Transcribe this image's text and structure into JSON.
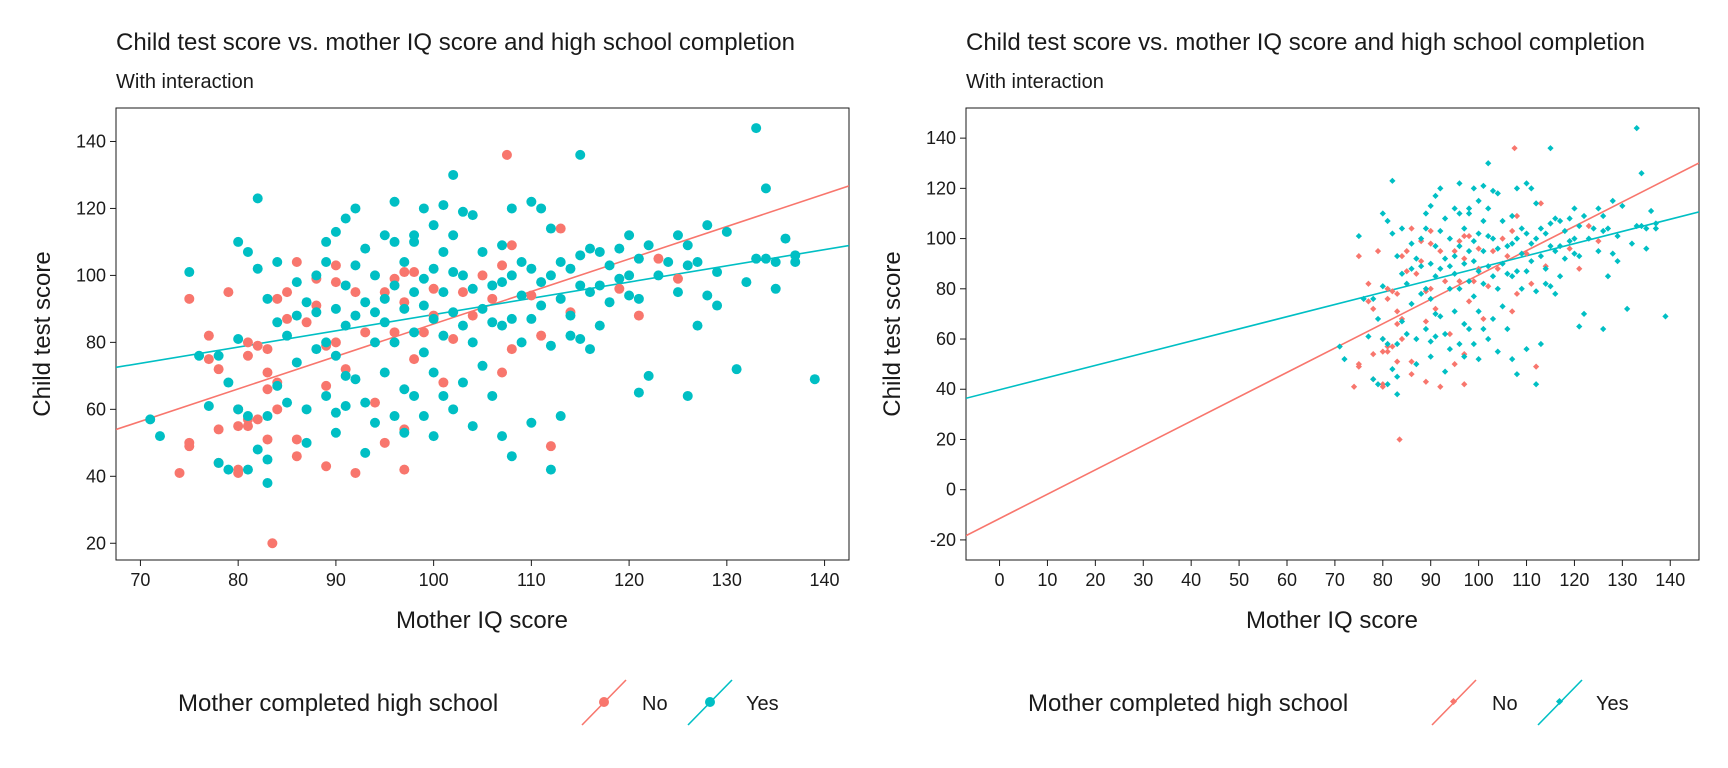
{
  "colors": {
    "No": "#F8766D",
    "Yes": "#00BFC4"
  },
  "chart_data": [
    {
      "type": "scatter",
      "title": "Child test score vs. mother IQ score and high school completion",
      "subtitle": "With interaction",
      "xlabel": "Mother IQ score",
      "ylabel": "Child test score",
      "xlim": [
        67.5,
        142.5
      ],
      "ylim": [
        15,
        150
      ],
      "xticks": [
        70,
        80,
        90,
        100,
        110,
        120,
        130,
        140
      ],
      "yticks": [
        20,
        40,
        60,
        80,
        100,
        120,
        140
      ],
      "grid": false,
      "legend": {
        "position": "bottom",
        "title": "Mother completed high school",
        "entries": [
          "No",
          "Yes"
        ]
      },
      "marker": "circle",
      "fit_lines": [
        {
          "name": "No",
          "intercept": -11.5,
          "slope": 0.97
        },
        {
          "name": "Yes",
          "intercept": 39.8,
          "slope": 0.485
        }
      ],
      "series": [
        {
          "name": "No",
          "points": [
            [
              74,
              41
            ],
            [
              75,
              93
            ],
            [
              75,
              50
            ],
            [
              75,
              49
            ],
            [
              77,
              82
            ],
            [
              77,
              75
            ],
            [
              78,
              44
            ],
            [
              78,
              54
            ],
            [
              78,
              72
            ],
            [
              79,
              95
            ],
            [
              80,
              60
            ],
            [
              80,
              55
            ],
            [
              80,
              42
            ],
            [
              80,
              41
            ],
            [
              81,
              80
            ],
            [
              81,
              76
            ],
            [
              81,
              57
            ],
            [
              81,
              55
            ],
            [
              82,
              57
            ],
            [
              82,
              79
            ],
            [
              83,
              78
            ],
            [
              83,
              71
            ],
            [
              83,
              66
            ],
            [
              83,
              51
            ],
            [
              84,
              93
            ],
            [
              83.5,
              20
            ],
            [
              84,
              68
            ],
            [
              84,
              60
            ],
            [
              85,
              95
            ],
            [
              85,
              87
            ],
            [
              86,
              104
            ],
            [
              86,
              51
            ],
            [
              86,
              46
            ],
            [
              87,
              86
            ],
            [
              88,
              99
            ],
            [
              88,
              91
            ],
            [
              89,
              79
            ],
            [
              89,
              67
            ],
            [
              89,
              43
            ],
            [
              90,
              103
            ],
            [
              90,
              98
            ],
            [
              90,
              80
            ],
            [
              91,
              72
            ],
            [
              92,
              95
            ],
            [
              92,
              41
            ],
            [
              93,
              83
            ],
            [
              94,
              62
            ],
            [
              95,
              95
            ],
            [
              95,
              50
            ],
            [
              96,
              99
            ],
            [
              96,
              83
            ],
            [
              97,
              101
            ],
            [
              97,
              92
            ],
            [
              97,
              54
            ],
            [
              97,
              42
            ],
            [
              98,
              101
            ],
            [
              98,
              75
            ],
            [
              99,
              83
            ],
            [
              100,
              96
            ],
            [
              100,
              88
            ],
            [
              101,
              68
            ],
            [
              102,
              81
            ],
            [
              103,
              95
            ],
            [
              104,
              88
            ],
            [
              105,
              100
            ],
            [
              106,
              93
            ],
            [
              107,
              103
            ],
            [
              107,
              71
            ],
            [
              107.5,
              136
            ],
            [
              108,
              109
            ],
            [
              108,
              78
            ],
            [
              110,
              94
            ],
            [
              111,
              82
            ],
            [
              112,
              49
            ],
            [
              113,
              114
            ],
            [
              114,
              89
            ],
            [
              119,
              96
            ],
            [
              121,
              88
            ],
            [
              123,
              105
            ],
            [
              125,
              99
            ]
          ]
        },
        {
          "name": "Yes",
          "points": [
            [
              71,
              57
            ],
            [
              72,
              52
            ],
            [
              75,
              101
            ],
            [
              76,
              76
            ],
            [
              77,
              61
            ],
            [
              78,
              44
            ],
            [
              78,
              76
            ],
            [
              79,
              42
            ],
            [
              79,
              68
            ],
            [
              80,
              81
            ],
            [
              80,
              110
            ],
            [
              80,
              60
            ],
            [
              81,
              107
            ],
            [
              81,
              58
            ],
            [
              81,
              42
            ],
            [
              82,
              123
            ],
            [
              82,
              48
            ],
            [
              82,
              102
            ],
            [
              83,
              93
            ],
            [
              83,
              58
            ],
            [
              83,
              45
            ],
            [
              83,
              38
            ],
            [
              84,
              86
            ],
            [
              84,
              104
            ],
            [
              84,
              67
            ],
            [
              85,
              82
            ],
            [
              85,
              62
            ],
            [
              86,
              88
            ],
            [
              86,
              74
            ],
            [
              86,
              98
            ],
            [
              87,
              92
            ],
            [
              87,
              60
            ],
            [
              87,
              50
            ],
            [
              88,
              78
            ],
            [
              88,
              100
            ],
            [
              88,
              89
            ],
            [
              89,
              104
            ],
            [
              89,
              80
            ],
            [
              89,
              64
            ],
            [
              89,
              110
            ],
            [
              90,
              113
            ],
            [
              90,
              76
            ],
            [
              90,
              90
            ],
            [
              90,
              59
            ],
            [
              90,
              53
            ],
            [
              91,
              117
            ],
            [
              91,
              97
            ],
            [
              91,
              70
            ],
            [
              91,
              85
            ],
            [
              91,
              61
            ],
            [
              92,
              120
            ],
            [
              92,
              103
            ],
            [
              92,
              88
            ],
            [
              92,
              69
            ],
            [
              93,
              108
            ],
            [
              93,
              92
            ],
            [
              93,
              62
            ],
            [
              93,
              47
            ],
            [
              94,
              100
            ],
            [
              94,
              89
            ],
            [
              94,
              80
            ],
            [
              94,
              56
            ],
            [
              95,
              112
            ],
            [
              95,
              93
            ],
            [
              95,
              86
            ],
            [
              95,
              71
            ],
            [
              96,
              110
            ],
            [
              96,
              97
            ],
            [
              96,
              80
            ],
            [
              96,
              58
            ],
            [
              96,
              122
            ],
            [
              97,
              104
            ],
            [
              97,
              90
            ],
            [
              97,
              66
            ],
            [
              97,
              53
            ],
            [
              98,
              110
            ],
            [
              98,
              95
            ],
            [
              98,
              83
            ],
            [
              98,
              64
            ],
            [
              98,
              112
            ],
            [
              99,
              120
            ],
            [
              99,
              99
            ],
            [
              99,
              91
            ],
            [
              99,
              77
            ],
            [
              99,
              58
            ],
            [
              100,
              115
            ],
            [
              100,
              102
            ],
            [
              100,
              87
            ],
            [
              100,
              71
            ],
            [
              100,
              52
            ],
            [
              101,
              121
            ],
            [
              101,
              107
            ],
            [
              101,
              95
            ],
            [
              101,
              82
            ],
            [
              101,
              64
            ],
            [
              102,
              130
            ],
            [
              102,
              112
            ],
            [
              102,
              101
            ],
            [
              102,
              89
            ],
            [
              102,
              60
            ],
            [
              103,
              119
            ],
            [
              103,
              100
            ],
            [
              103,
              85
            ],
            [
              103,
              68
            ],
            [
              104,
              118
            ],
            [
              104,
              96
            ],
            [
              104,
              80
            ],
            [
              104,
              55
            ],
            [
              105,
              107
            ],
            [
              105,
              90
            ],
            [
              105,
              73
            ],
            [
              106,
              97
            ],
            [
              106,
              86
            ],
            [
              106,
              64
            ],
            [
              107,
              109
            ],
            [
              107,
              98
            ],
            [
              107,
              85
            ],
            [
              107,
              52
            ],
            [
              108,
              120
            ],
            [
              108,
              100
            ],
            [
              108,
              87
            ],
            [
              108,
              46
            ],
            [
              109,
              104
            ],
            [
              109,
              94
            ],
            [
              109,
              80
            ],
            [
              110,
              122
            ],
            [
              110,
              102
            ],
            [
              110,
              87
            ],
            [
              110,
              56
            ],
            [
              111,
              120
            ],
            [
              111,
              98
            ],
            [
              111,
              91
            ],
            [
              112,
              114
            ],
            [
              112,
              100
            ],
            [
              112,
              79
            ],
            [
              112,
              42
            ],
            [
              113,
              104
            ],
            [
              113,
              93
            ],
            [
              113,
              58
            ],
            [
              114,
              102
            ],
            [
              114,
              88
            ],
            [
              114,
              82
            ],
            [
              115,
              136
            ],
            [
              115,
              106
            ],
            [
              115,
              97
            ],
            [
              115,
              81
            ],
            [
              116,
              108
            ],
            [
              116,
              95
            ],
            [
              116,
              78
            ],
            [
              117,
              107
            ],
            [
              117,
              97
            ],
            [
              117,
              85
            ],
            [
              118,
              103
            ],
            [
              118,
              92
            ],
            [
              119,
              108
            ],
            [
              119,
              99
            ],
            [
              120,
              112
            ],
            [
              120,
              100
            ],
            [
              120,
              94
            ],
            [
              121,
              105
            ],
            [
              121,
              93
            ],
            [
              121,
              65
            ],
            [
              122,
              109
            ],
            [
              122,
              70
            ],
            [
              123,
              100
            ],
            [
              124,
              104
            ],
            [
              125,
              112
            ],
            [
              125,
              95
            ],
            [
              126,
              109
            ],
            [
              126,
              103
            ],
            [
              126,
              64
            ],
            [
              127,
              104
            ],
            [
              127,
              85
            ],
            [
              128,
              115
            ],
            [
              128,
              94
            ],
            [
              129,
              101
            ],
            [
              129,
              91
            ],
            [
              130,
              113
            ],
            [
              131,
              72
            ],
            [
              132,
              98
            ],
            [
              133,
              144
            ],
            [
              133,
              105
            ],
            [
              134,
              126
            ],
            [
              134,
              105
            ],
            [
              135,
              104
            ],
            [
              135,
              96
            ],
            [
              136,
              111
            ],
            [
              137,
              106
            ],
            [
              137,
              104
            ],
            [
              139,
              69
            ]
          ]
        }
      ]
    },
    {
      "type": "scatter",
      "title": "Child test score vs. mother IQ score and high school completion",
      "subtitle": "With interaction",
      "xlabel": "Mother IQ score",
      "ylabel": "Child test score",
      "xlim": [
        -7,
        146
      ],
      "ylim": [
        -28,
        152
      ],
      "xticks": [
        0,
        10,
        20,
        30,
        40,
        50,
        60,
        70,
        80,
        90,
        100,
        110,
        120,
        130,
        140
      ],
      "yticks": [
        -20,
        0,
        20,
        40,
        60,
        80,
        100,
        120,
        140
      ],
      "grid": false,
      "legend": {
        "position": "bottom",
        "title": "Mother completed high school",
        "entries": [
          "No",
          "Yes"
        ]
      },
      "marker": "diamond",
      "fit_lines": [
        {
          "name": "No",
          "intercept": -11.5,
          "slope": 0.97
        },
        {
          "name": "Yes",
          "intercept": 39.8,
          "slope": 0.485
        }
      ]
    }
  ]
}
